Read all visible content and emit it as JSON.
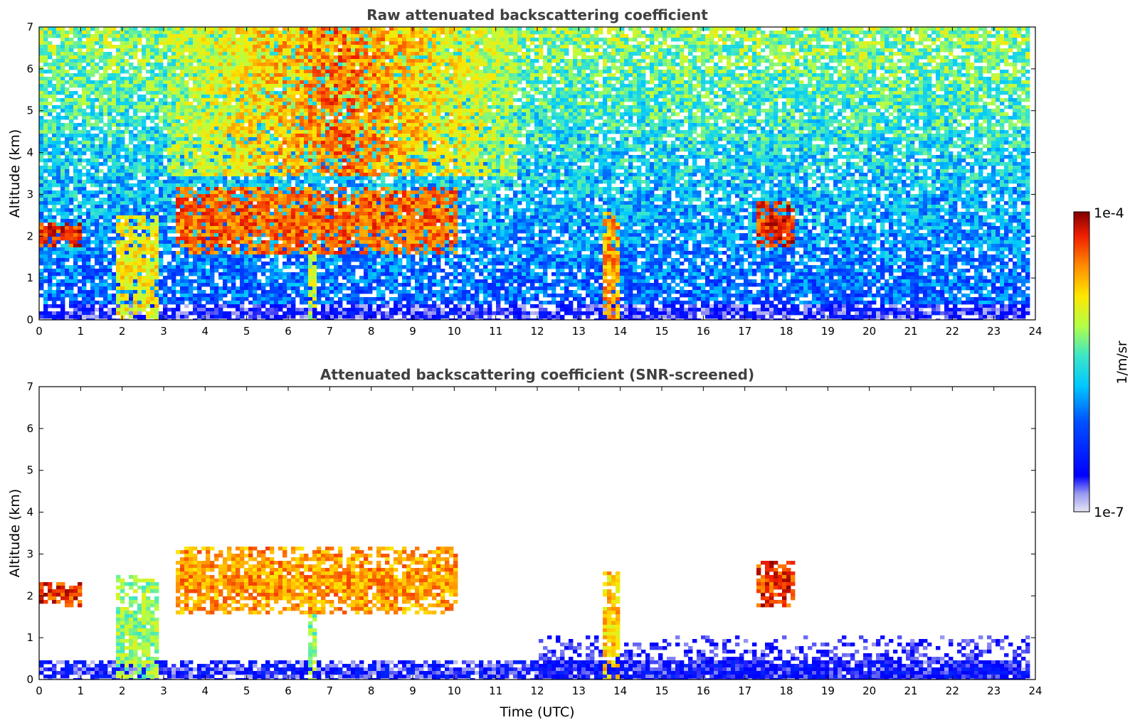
{
  "chart_data": [
    {
      "type": "heatmap",
      "title": "Raw attenuated backscattering coefficient",
      "xlabel": "",
      "ylabel": "Altitude (km)",
      "xlim": [
        0,
        24
      ],
      "ylim": [
        0,
        7
      ],
      "x_ticks": [
        "0",
        "1",
        "2",
        "3",
        "4",
        "5",
        "6",
        "7",
        "8",
        "9",
        "10",
        "11",
        "12",
        "13",
        "14",
        "15",
        "16",
        "17",
        "18",
        "19",
        "20",
        "21",
        "22",
        "23",
        "24"
      ],
      "y_ticks": [
        "0",
        "1",
        "2",
        "3",
        "4",
        "5",
        "6",
        "7"
      ],
      "data_end_hour": 23.8,
      "features": [
        {
          "kind": "boundary_layer",
          "x": [
            0,
            23.8
          ],
          "y": [
            0,
            0.45
          ],
          "level": 0.12
        },
        {
          "kind": "background_noise",
          "x": [
            0,
            23.8
          ],
          "y": [
            0.45,
            7
          ],
          "level_low": 0.3,
          "level_high": 0.6
        },
        {
          "kind": "sunlit_noise",
          "x": [
            3,
            11.5
          ],
          "y": [
            3.5,
            7
          ],
          "level": 0.85
        },
        {
          "kind": "cloud_layer",
          "x": [
            3.2,
            10
          ],
          "y": [
            1.6,
            3.2
          ],
          "level": 0.85
        },
        {
          "kind": "cloud_layer",
          "x": [
            0,
            1
          ],
          "y": [
            1.8,
            2.4
          ],
          "level": 0.9
        },
        {
          "kind": "precipitation",
          "x": [
            1.8,
            2.8
          ],
          "y": [
            0,
            2.5
          ],
          "level": 0.7
        },
        {
          "kind": "precipitation",
          "x": [
            13.5,
            13.9
          ],
          "y": [
            0,
            2.6
          ],
          "level": 0.8
        },
        {
          "kind": "precipitation",
          "x": [
            6.4,
            6.6
          ],
          "y": [
            0,
            1.8
          ],
          "level": 0.65
        },
        {
          "kind": "cloud_layer",
          "x": [
            17.2,
            18.2
          ],
          "y": [
            1.8,
            2.9
          ],
          "level": 0.9
        }
      ]
    },
    {
      "type": "heatmap",
      "title": "Attenuated backscattering coefficient (SNR-screened)",
      "xlabel": "Time (UTC)",
      "ylabel": "Altitude (km)",
      "xlim": [
        0,
        24
      ],
      "ylim": [
        0,
        7
      ],
      "x_ticks": [
        "0",
        "1",
        "2",
        "3",
        "4",
        "5",
        "6",
        "7",
        "8",
        "9",
        "10",
        "11",
        "12",
        "13",
        "14",
        "15",
        "16",
        "17",
        "18",
        "19",
        "20",
        "21",
        "22",
        "23",
        "24"
      ],
      "y_ticks": [
        "0",
        "1",
        "2",
        "3",
        "4",
        "5",
        "6",
        "7"
      ],
      "data_end_hour": 23.8,
      "features": [
        {
          "kind": "boundary_layer",
          "x": [
            0,
            23.8
          ],
          "y": [
            0,
            0.5
          ],
          "level": 0.12
        },
        {
          "kind": "boundary_layer_top",
          "x": [
            12,
            23.8
          ],
          "y": [
            0,
            1.1
          ],
          "level": 0.1
        },
        {
          "kind": "cloud_layer",
          "x": [
            3.2,
            10
          ],
          "y": [
            1.6,
            3.2
          ],
          "level": 0.8
        },
        {
          "kind": "cloud_layer",
          "x": [
            0,
            1
          ],
          "y": [
            1.8,
            2.4
          ],
          "level": 0.9
        },
        {
          "kind": "precipitation",
          "x": [
            1.8,
            2.8
          ],
          "y": [
            0,
            2.5
          ],
          "level": 0.6
        },
        {
          "kind": "precipitation",
          "x": [
            13.5,
            13.9
          ],
          "y": [
            0,
            2.6
          ],
          "level": 0.75
        },
        {
          "kind": "precipitation",
          "x": [
            6.4,
            6.6
          ],
          "y": [
            0,
            1.8
          ],
          "level": 0.6
        },
        {
          "kind": "cloud_layer",
          "x": [
            17.2,
            18.2
          ],
          "y": [
            1.8,
            2.9
          ],
          "level": 0.9
        }
      ]
    }
  ],
  "colorbar": {
    "label": "1/m/sr",
    "max_label": "1e-4",
    "min_label": "1e-7",
    "colormap": "jet"
  }
}
